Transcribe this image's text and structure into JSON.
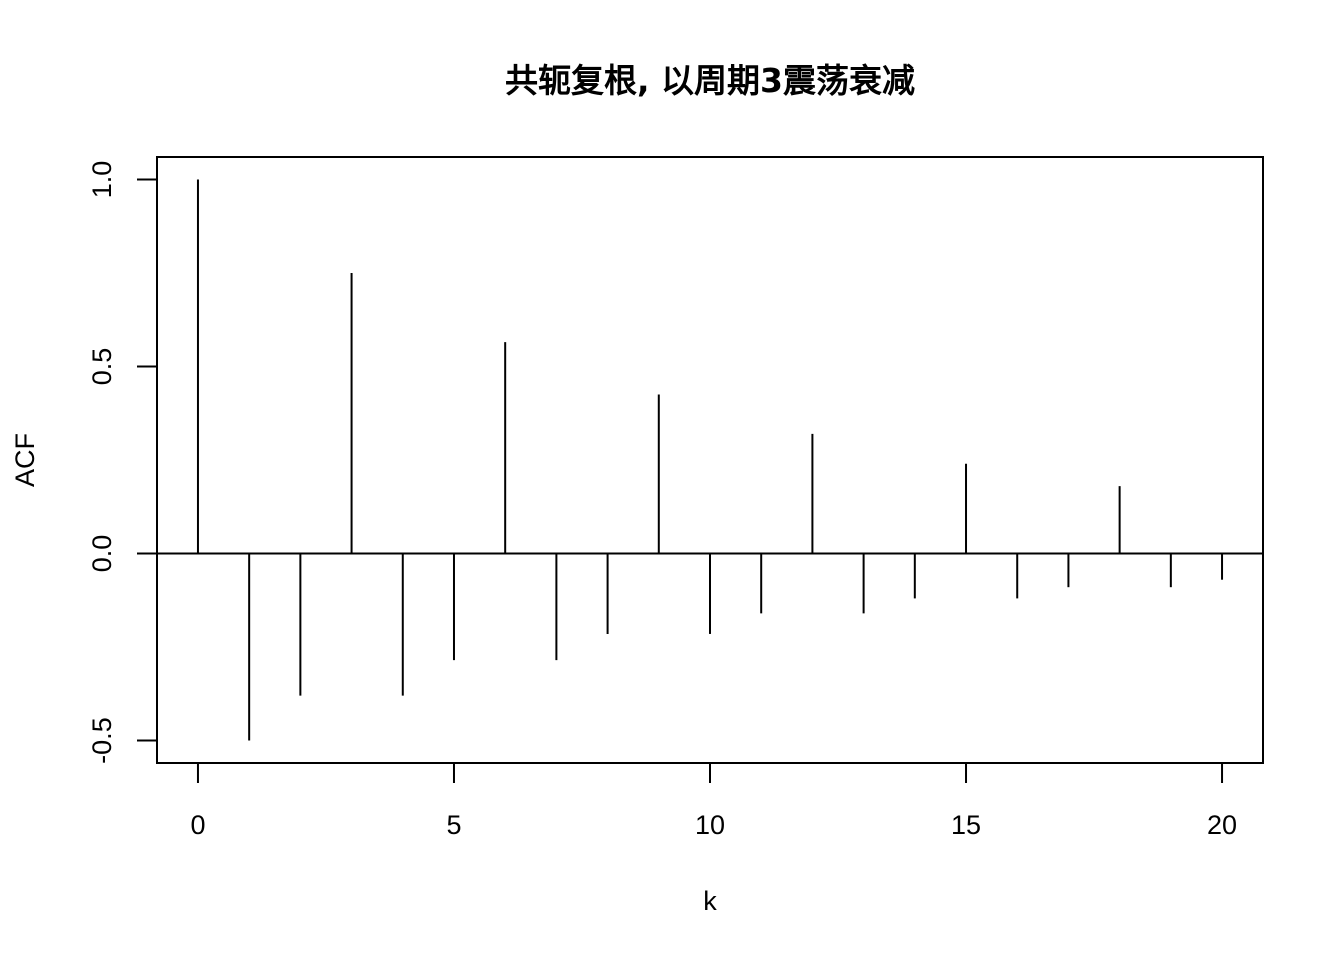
{
  "chart_data": {
    "type": "bar",
    "title": "共轭复根, 以周期3震荡衰减",
    "xlabel": "k",
    "ylabel": "ACF",
    "xlim": [
      -0.8,
      20.8
    ],
    "ylim": [
      -0.56,
      1.06
    ],
    "x_ticks": [
      0,
      5,
      10,
      15,
      20
    ],
    "x_tick_labels": [
      "0",
      "5",
      "10",
      "15",
      "20"
    ],
    "y_ticks": [
      -0.5,
      0.0,
      0.5,
      1.0
    ],
    "y_tick_labels": [
      "-0.5",
      "0.0",
      "0.5",
      "1.0"
    ],
    "x": [
      0,
      1,
      2,
      3,
      4,
      5,
      6,
      7,
      8,
      9,
      10,
      11,
      12,
      13,
      14,
      15,
      16,
      17,
      18,
      19,
      20
    ],
    "values": [
      1.0,
      -0.5,
      -0.38,
      0.75,
      -0.38,
      -0.285,
      0.565,
      -0.285,
      -0.215,
      0.425,
      -0.215,
      -0.16,
      0.32,
      -0.16,
      -0.12,
      0.24,
      -0.12,
      -0.09,
      0.18,
      -0.09,
      -0.07
    ],
    "reference_line": 0,
    "grid": false,
    "colors": {
      "stroke": "#000000",
      "background": "#ffffff"
    }
  }
}
